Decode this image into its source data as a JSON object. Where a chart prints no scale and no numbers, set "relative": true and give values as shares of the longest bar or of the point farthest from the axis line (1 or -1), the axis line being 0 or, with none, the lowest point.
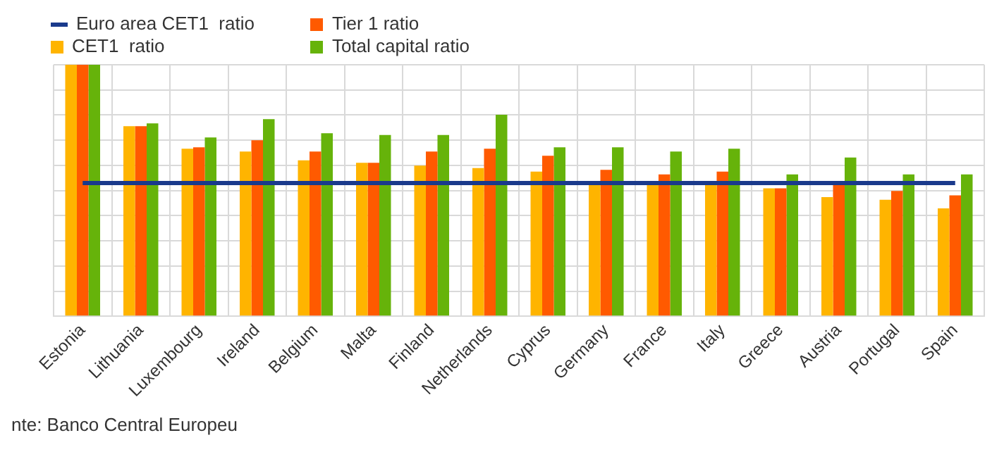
{
  "chart_data": {
    "type": "bar",
    "relative": true,
    "grid": true,
    "legend": "top left",
    "annotations": [
      "nte: Banco Central Europeu"
    ],
    "categories": [
      "Estonia",
      "Lithuania",
      "Luxembourg",
      "Ireland",
      "Belgium",
      "Malta",
      "Finland",
      "Netherlands",
      "Cyprus",
      "Germany",
      "France",
      "Italy",
      "Greece",
      "Austria",
      "Portugal",
      "Spain"
    ],
    "series": [
      {
        "name": "Euro area CET1  ratio",
        "type": "line",
        "marker": "none",
        "color": "#1a3a8c",
        "values": [
          0.53,
          0.53,
          0.53,
          0.53,
          0.53,
          0.53,
          0.53,
          0.53,
          0.53,
          0.53,
          0.53,
          0.53,
          0.53,
          0.53,
          0.53,
          0.53
        ]
      },
      {
        "name": "CET1  ratio",
        "color": "#ffb400",
        "values": [
          1,
          0.756,
          0.666,
          0.655,
          0.62,
          0.61,
          0.599,
          0.589,
          0.575,
          0.523,
          0.523,
          0.523,
          0.509,
          0.474,
          0.463,
          0.429
        ]
      },
      {
        "name": "Tier 1 ratio",
        "color": "#ff5a00",
        "values": [
          1,
          0.756,
          0.672,
          0.7,
          0.655,
          0.61,
          0.655,
          0.666,
          0.638,
          0.582,
          0.564,
          0.575,
          0.509,
          0.53,
          0.498,
          0.481
        ]
      },
      {
        "name": "Total capital ratio",
        "color": "#66b30a",
        "values": [
          1,
          0.767,
          0.711,
          0.784,
          0.728,
          0.721,
          0.721,
          0.801,
          0.672,
          0.672,
          0.655,
          0.666,
          0.564,
          0.631,
          0.564,
          0.564
        ]
      }
    ]
  }
}
